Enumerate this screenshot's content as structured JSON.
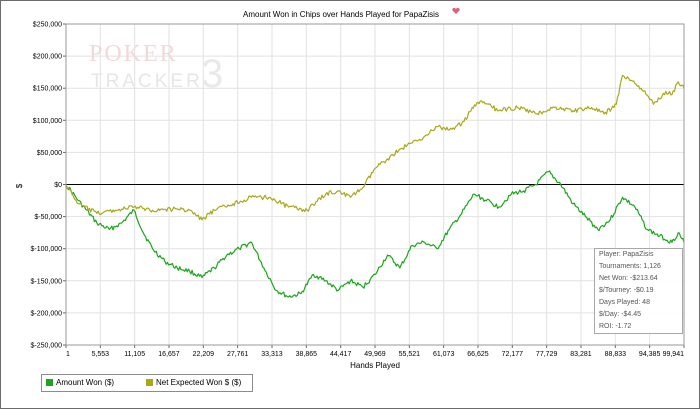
{
  "logo": {
    "text_top": "POKER",
    "text_bottom": "TRACKER",
    "digit": "3"
  },
  "stats": {
    "player": "Player: PapaZisis",
    "tournaments": "Tournaments: 1,126",
    "net_won": "Net Won: -$213.64",
    "per_tourney": "$/Tourney: -$0.19",
    "days_played": "Days Played: 48",
    "per_day": "$/Day: -$4.45",
    "roi": "ROI: -1.72"
  },
  "colors": {
    "amount_won": "#1aa51a",
    "net_expected": "#a8a819",
    "zero_line": "#000000",
    "grid": "#e2e2e2",
    "title_icon": "#e0607a"
  },
  "chart_data": {
    "type": "line",
    "title": "Amount Won in Chips over Hands Played for PapaZisis",
    "xlabel": "Hands Played",
    "ylabel": "$",
    "xlim": [
      1,
      99941
    ],
    "ylim": [
      -250000,
      250000
    ],
    "grid": true,
    "legend_position": "bottom-left",
    "x_ticks": [
      1,
      5553,
      11105,
      16657,
      22209,
      27761,
      33313,
      38865,
      44417,
      49969,
      55521,
      61073,
      66625,
      72177,
      77729,
      83281,
      88833,
      94385,
      99941
    ],
    "x_tick_labels": [
      "1",
      "5,553",
      "11,105",
      "16,657",
      "22,209",
      "27,761",
      "33,313",
      "38,865",
      "44,417",
      "49,969",
      "55,521",
      "61,073",
      "66,625",
      "72,177",
      "77,729",
      "83,281",
      "88,833",
      "94,385",
      "99,941"
    ],
    "y_ticks": [
      -250000,
      -200000,
      -150000,
      -100000,
      -50000,
      0,
      50000,
      100000,
      150000,
      200000,
      250000
    ],
    "y_tick_labels": [
      "$-250,000",
      "$-200,000",
      "$-150,000",
      "$-100,000",
      "$-50,000",
      "$0",
      "$50,000",
      "$100,000",
      "$150,000",
      "$200,000",
      "$250,000"
    ],
    "series": [
      {
        "name": "Amount Won ($)",
        "color": "#1aa51a",
        "x": [
          1,
          2000,
          5000,
          7000,
          9000,
          11000,
          12500,
          14000,
          16000,
          18000,
          20000,
          22000,
          24000,
          26000,
          28000,
          30000,
          32000,
          34000,
          36000,
          38000,
          40000,
          42000,
          44000,
          46000,
          48000,
          50000,
          52000,
          54000,
          56000,
          58000,
          60000,
          62000,
          64000,
          66000,
          68000,
          70000,
          72000,
          74000,
          76000,
          78000,
          80000,
          82000,
          84000,
          86000,
          88000,
          90000,
          92000,
          94000,
          96000,
          98000,
          99000,
          99941
        ],
        "y": [
          0,
          -25000,
          -60000,
          -70000,
          -60000,
          -40000,
          -75000,
          -100000,
          -120000,
          -130000,
          -135000,
          -145000,
          -130000,
          -110000,
          -100000,
          -90000,
          -130000,
          -165000,
          -175000,
          -170000,
          -140000,
          -150000,
          -165000,
          -150000,
          -160000,
          -140000,
          -110000,
          -130000,
          -95000,
          -90000,
          -100000,
          -70000,
          -45000,
          -15000,
          -25000,
          -35000,
          -15000,
          -10000,
          0,
          20000,
          0,
          -30000,
          -50000,
          -70000,
          -55000,
          -20000,
          -35000,
          -70000,
          -80000,
          -90000,
          -75000,
          -90000
        ]
      },
      {
        "name": "Net Expected Won $ ($)",
        "color": "#a8a819",
        "x": [
          1,
          2000,
          5000,
          8000,
          11000,
          14000,
          18000,
          20000,
          22000,
          24000,
          27000,
          30000,
          33000,
          36000,
          39000,
          42000,
          44000,
          46000,
          48000,
          50000,
          52000,
          54000,
          56000,
          58000,
          60000,
          62000,
          64000,
          65500,
          67000,
          70000,
          73000,
          76000,
          79000,
          82000,
          85000,
          87000,
          89000,
          90000,
          91000,
          93000,
          95000,
          97000,
          98000,
          99000,
          99941
        ],
        "y": [
          0,
          -30000,
          -45000,
          -40000,
          -35000,
          -40000,
          -38000,
          -40000,
          -55000,
          -40000,
          -30000,
          -20000,
          -20000,
          -35000,
          -40000,
          -15000,
          -10000,
          -20000,
          -5000,
          25000,
          40000,
          55000,
          65000,
          75000,
          90000,
          85000,
          95000,
          115000,
          130000,
          115000,
          120000,
          110000,
          120000,
          115000,
          120000,
          110000,
          125000,
          170000,
          165000,
          150000,
          125000,
          145000,
          140000,
          160000,
          150000
        ]
      }
    ]
  }
}
